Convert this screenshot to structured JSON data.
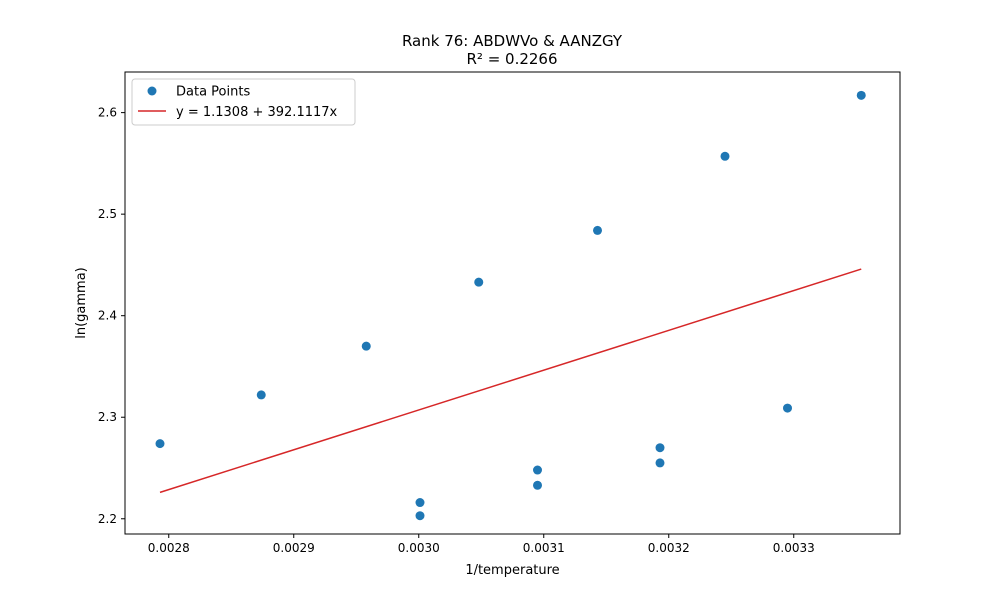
{
  "chart_data": {
    "type": "scatter",
    "title": "Rank 76: ABDWVo & AANZGY",
    "subtitle": "R² = 0.2266",
    "xlabel": "1/temperature",
    "ylabel": "ln(gamma)",
    "xlim": [
      0.002765,
      0.003385
    ],
    "ylim": [
      2.185,
      2.64
    ],
    "xticks": [
      0.0028,
      0.0029,
      0.003,
      0.0031,
      0.0032,
      0.0033
    ],
    "xtick_labels": [
      "0.0028",
      "0.0029",
      "0.0030",
      "0.0031",
      "0.0032",
      "0.0033"
    ],
    "yticks": [
      2.2,
      2.3,
      2.4,
      2.5,
      2.6
    ],
    "ytick_labels": [
      "2.2",
      "2.3",
      "2.4",
      "2.5",
      "2.6"
    ],
    "grid": false,
    "legend_position": "top-left",
    "series": [
      {
        "name": "Data Points",
        "kind": "scatter",
        "color": "#1f77b4",
        "points": [
          {
            "x": 0.002793,
            "y": 2.274
          },
          {
            "x": 0.002874,
            "y": 2.322
          },
          {
            "x": 0.002958,
            "y": 2.37
          },
          {
            "x": 0.003001,
            "y": 2.216
          },
          {
            "x": 0.003001,
            "y": 2.203
          },
          {
            "x": 0.003048,
            "y": 2.433
          },
          {
            "x": 0.003095,
            "y": 2.248
          },
          {
            "x": 0.003095,
            "y": 2.233
          },
          {
            "x": 0.003143,
            "y": 2.484
          },
          {
            "x": 0.003193,
            "y": 2.27
          },
          {
            "x": 0.003193,
            "y": 2.255
          },
          {
            "x": 0.003245,
            "y": 2.557
          },
          {
            "x": 0.003295,
            "y": 2.309
          },
          {
            "x": 0.003354,
            "y": 2.617
          }
        ]
      },
      {
        "name": "y = 1.1308 + 392.1117x",
        "kind": "line",
        "color": "#d62728",
        "intercept": 1.1308,
        "slope": 392.1117,
        "x_range": [
          0.002793,
          0.003354
        ]
      }
    ]
  }
}
